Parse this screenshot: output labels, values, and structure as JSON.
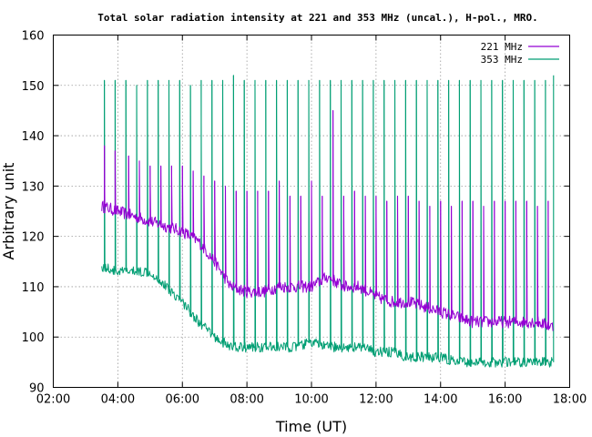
{
  "chart_data": {
    "type": "line",
    "title": "Total solar radiation intensity at 221 and 353 MHz (uncal.), H-pol., MRO.",
    "xlabel": "Time (UT)",
    "ylabel": "Arbitrary unit",
    "xlim": [
      "02:00",
      "18:00"
    ],
    "ylim": [
      90,
      160
    ],
    "xticks": [
      "02:00",
      "04:00",
      "06:00",
      "08:00",
      "10:00",
      "12:00",
      "14:00",
      "16:00",
      "18:00"
    ],
    "yticks": [
      90,
      100,
      110,
      120,
      130,
      140,
      150,
      160
    ],
    "grid": true,
    "legend_position": "top-right",
    "series": [
      {
        "name": "221 MHz",
        "color": "#9400d3",
        "x_start": "03:30",
        "x_end": "17:30",
        "baseline": [
          [
            "03:30",
            126
          ],
          [
            "04:00",
            125
          ],
          [
            "04:30",
            124
          ],
          [
            "05:00",
            123
          ],
          [
            "05:30",
            122
          ],
          [
            "06:00",
            121
          ],
          [
            "06:30",
            119
          ],
          [
            "07:00",
            115
          ],
          [
            "07:30",
            110
          ],
          [
            "08:00",
            109
          ],
          [
            "08:30",
            109
          ],
          [
            "09:00",
            110
          ],
          [
            "09:30",
            110
          ],
          [
            "10:00",
            110
          ],
          [
            "10:30",
            112
          ],
          [
            "11:00",
            110
          ],
          [
            "11:30",
            110
          ],
          [
            "12:00",
            108
          ],
          [
            "12:30",
            107
          ],
          [
            "13:00",
            107
          ],
          [
            "13:30",
            106
          ],
          [
            "14:00",
            105
          ],
          [
            "14:30",
            104
          ],
          [
            "15:00",
            103
          ],
          [
            "15:30",
            103
          ],
          [
            "16:00",
            103
          ],
          [
            "16:30",
            103
          ],
          [
            "17:00",
            103
          ],
          [
            "17:30",
            102
          ]
        ],
        "spikes": [
          [
            "03:35",
            138
          ],
          [
            "03:55",
            137
          ],
          [
            "04:20",
            136
          ],
          [
            "04:40",
            135
          ],
          [
            "05:00",
            134
          ],
          [
            "05:20",
            134
          ],
          [
            "05:40",
            134
          ],
          [
            "06:00",
            134
          ],
          [
            "06:20",
            133
          ],
          [
            "06:40",
            132
          ],
          [
            "07:00",
            131
          ],
          [
            "07:20",
            130
          ],
          [
            "07:40",
            129
          ],
          [
            "08:00",
            129
          ],
          [
            "08:20",
            129
          ],
          [
            "08:40",
            129
          ],
          [
            "09:00",
            131
          ],
          [
            "09:20",
            128
          ],
          [
            "09:40",
            128
          ],
          [
            "10:00",
            131
          ],
          [
            "10:20",
            128
          ],
          [
            "10:40",
            145
          ],
          [
            "11:00",
            128
          ],
          [
            "11:20",
            129
          ],
          [
            "11:40",
            128
          ],
          [
            "12:00",
            128
          ],
          [
            "12:20",
            127
          ],
          [
            "12:40",
            128
          ],
          [
            "13:00",
            128
          ],
          [
            "13:20",
            127
          ],
          [
            "13:40",
            126
          ],
          [
            "14:00",
            127
          ],
          [
            "14:20",
            126
          ],
          [
            "14:40",
            127
          ],
          [
            "15:00",
            127
          ],
          [
            "15:20",
            126
          ],
          [
            "15:40",
            127
          ],
          [
            "16:00",
            127
          ],
          [
            "16:20",
            127
          ],
          [
            "16:40",
            127
          ],
          [
            "17:00",
            126
          ],
          [
            "17:20",
            127
          ]
        ]
      },
      {
        "name": "353 MHz",
        "color": "#009e73",
        "x_start": "03:30",
        "x_end": "17:30",
        "baseline": [
          [
            "03:30",
            114
          ],
          [
            "04:00",
            113
          ],
          [
            "04:30",
            113
          ],
          [
            "05:00",
            113
          ],
          [
            "05:30",
            110
          ],
          [
            "06:00",
            107
          ],
          [
            "06:30",
            103
          ],
          [
            "07:00",
            100
          ],
          [
            "07:30",
            98
          ],
          [
            "08:00",
            98
          ],
          [
            "08:30",
            98
          ],
          [
            "09:00",
            98
          ],
          [
            "09:30",
            98
          ],
          [
            "10:00",
            99
          ],
          [
            "10:30",
            98
          ],
          [
            "11:00",
            98
          ],
          [
            "11:30",
            98
          ],
          [
            "12:00",
            97
          ],
          [
            "12:30",
            97
          ],
          [
            "13:00",
            96
          ],
          [
            "13:30",
            96
          ],
          [
            "14:00",
            96
          ],
          [
            "14:30",
            95
          ],
          [
            "15:00",
            95
          ],
          [
            "15:30",
            95
          ],
          [
            "16:00",
            95
          ],
          [
            "16:30",
            95
          ],
          [
            "17:00",
            95
          ],
          [
            "17:30",
            95
          ]
        ],
        "spikes": [
          [
            "03:35",
            151
          ],
          [
            "03:55",
            151
          ],
          [
            "04:15",
            151
          ],
          [
            "04:35",
            150
          ],
          [
            "04:55",
            151
          ],
          [
            "05:15",
            151
          ],
          [
            "05:35",
            151
          ],
          [
            "05:55",
            151
          ],
          [
            "06:15",
            150
          ],
          [
            "06:35",
            151
          ],
          [
            "06:55",
            151
          ],
          [
            "07:15",
            151
          ],
          [
            "07:35",
            152
          ],
          [
            "07:55",
            151
          ],
          [
            "08:15",
            151
          ],
          [
            "08:35",
            151
          ],
          [
            "08:55",
            151
          ],
          [
            "09:15",
            151
          ],
          [
            "09:35",
            151
          ],
          [
            "09:55",
            151
          ],
          [
            "10:15",
            151
          ],
          [
            "10:35",
            151
          ],
          [
            "10:55",
            151
          ],
          [
            "11:15",
            151
          ],
          [
            "11:35",
            151
          ],
          [
            "11:55",
            151
          ],
          [
            "12:15",
            151
          ],
          [
            "12:35",
            151
          ],
          [
            "12:55",
            151
          ],
          [
            "13:15",
            151
          ],
          [
            "13:35",
            151
          ],
          [
            "13:55",
            151
          ],
          [
            "14:15",
            151
          ],
          [
            "14:35",
            151
          ],
          [
            "14:55",
            151
          ],
          [
            "15:15",
            151
          ],
          [
            "15:35",
            151
          ],
          [
            "15:55",
            151
          ],
          [
            "16:15",
            151
          ],
          [
            "16:35",
            151
          ],
          [
            "16:55",
            151
          ],
          [
            "17:15",
            151
          ],
          [
            "17:30",
            152
          ]
        ]
      }
    ]
  }
}
